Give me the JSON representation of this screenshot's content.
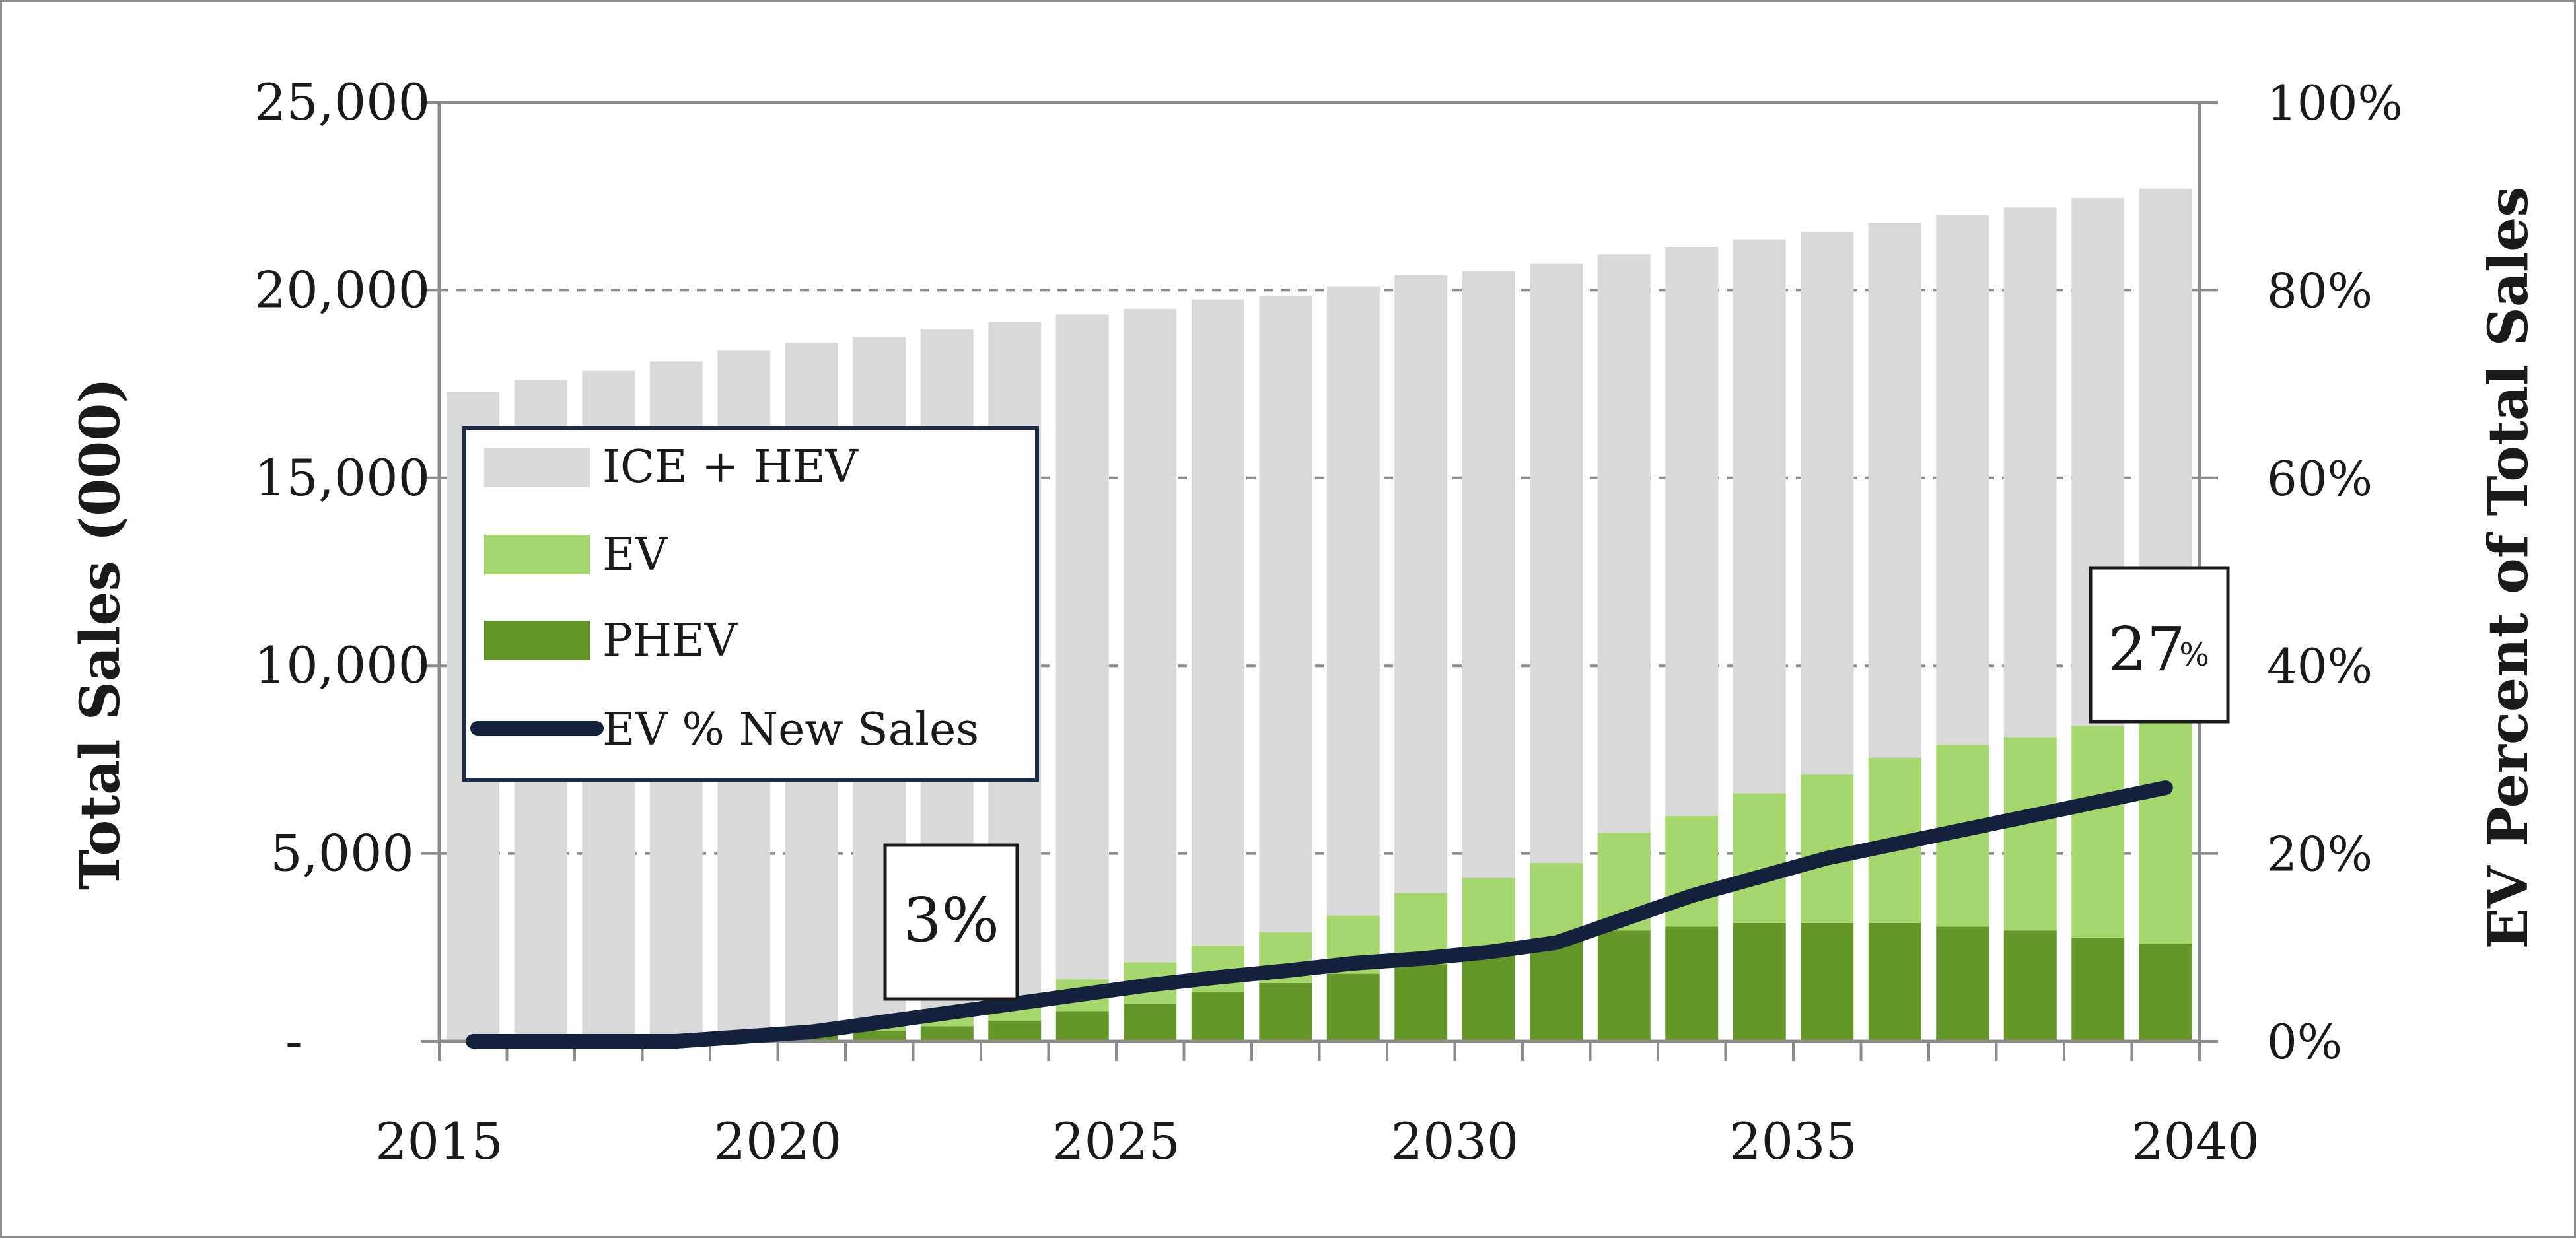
{
  "chart_data": {
    "type": "bar",
    "stacked": true,
    "title": "",
    "ylabel": "Total Sales (000)",
    "y2label": "EV Percent of Total Sales",
    "ylim": [
      0,
      25000
    ],
    "y2lim": [
      0,
      100
    ],
    "yticks": [
      "-",
      "5,000",
      "10,000",
      "15,000",
      "20,000",
      "25,000"
    ],
    "y2ticks": [
      "0%",
      "20%",
      "40%",
      "60%",
      "80%",
      "100%"
    ],
    "xticks": [
      "2015",
      "2020",
      "2025",
      "2030",
      "2035",
      "2040"
    ],
    "categories": [
      2015,
      2016,
      2017,
      2018,
      2019,
      2020,
      2021,
      2022,
      2023,
      2024,
      2025,
      2026,
      2027,
      2028,
      2029,
      2030,
      2031,
      2032,
      2033,
      2034,
      2035,
      2036,
      2037,
      2038,
      2039,
      2040
    ],
    "grid": "horizontal, dashed",
    "legend_position": "left, middle",
    "series": [
      {
        "name": "PHEV",
        "color": "#64962a",
        "values": [
          10,
          15,
          20,
          30,
          60,
          150,
          280,
          400,
          550,
          800,
          1000,
          1300,
          1550,
          1800,
          2050,
          2400,
          2700,
          2950,
          3050,
          3150,
          3150,
          3150,
          3050,
          2950,
          2750,
          2600
        ]
      },
      {
        "name": "EV",
        "color": "#a6d66e",
        "values": [
          5,
          10,
          15,
          20,
          40,
          100,
          150,
          250,
          400,
          850,
          1100,
          1250,
          1350,
          1550,
          1900,
          1950,
          2050,
          2600,
          2950,
          3450,
          3950,
          4400,
          4850,
          5150,
          5650,
          5900
        ]
      },
      {
        "name": "ICE + HEV",
        "color": "#d9d9d9",
        "values": [
          17285,
          17575,
          17815,
          18050,
          18300,
          18350,
          18320,
          18300,
          18200,
          17700,
          17400,
          17200,
          16950,
          16750,
          16450,
          16150,
          15950,
          15400,
          15150,
          14750,
          14450,
          14250,
          14100,
          14100,
          14050,
          14200
        ]
      },
      {
        "name": "EV % New Sales",
        "type": "line",
        "axis": "right",
        "color": "#14213d",
        "values": [
          0,
          0,
          0,
          0,
          0.5,
          1,
          2,
          3,
          4,
          5,
          6,
          6.8,
          7.5,
          8.3,
          8.8,
          9.5,
          10.5,
          13,
          15.5,
          17.5,
          19.5,
          21,
          22.5,
          24,
          25.5,
          27
        ]
      }
    ],
    "annotations": [
      {
        "label": "3%",
        "year": 2022
      },
      {
        "label": "27",
        "suffix": "%",
        "year": 2040
      }
    ]
  }
}
